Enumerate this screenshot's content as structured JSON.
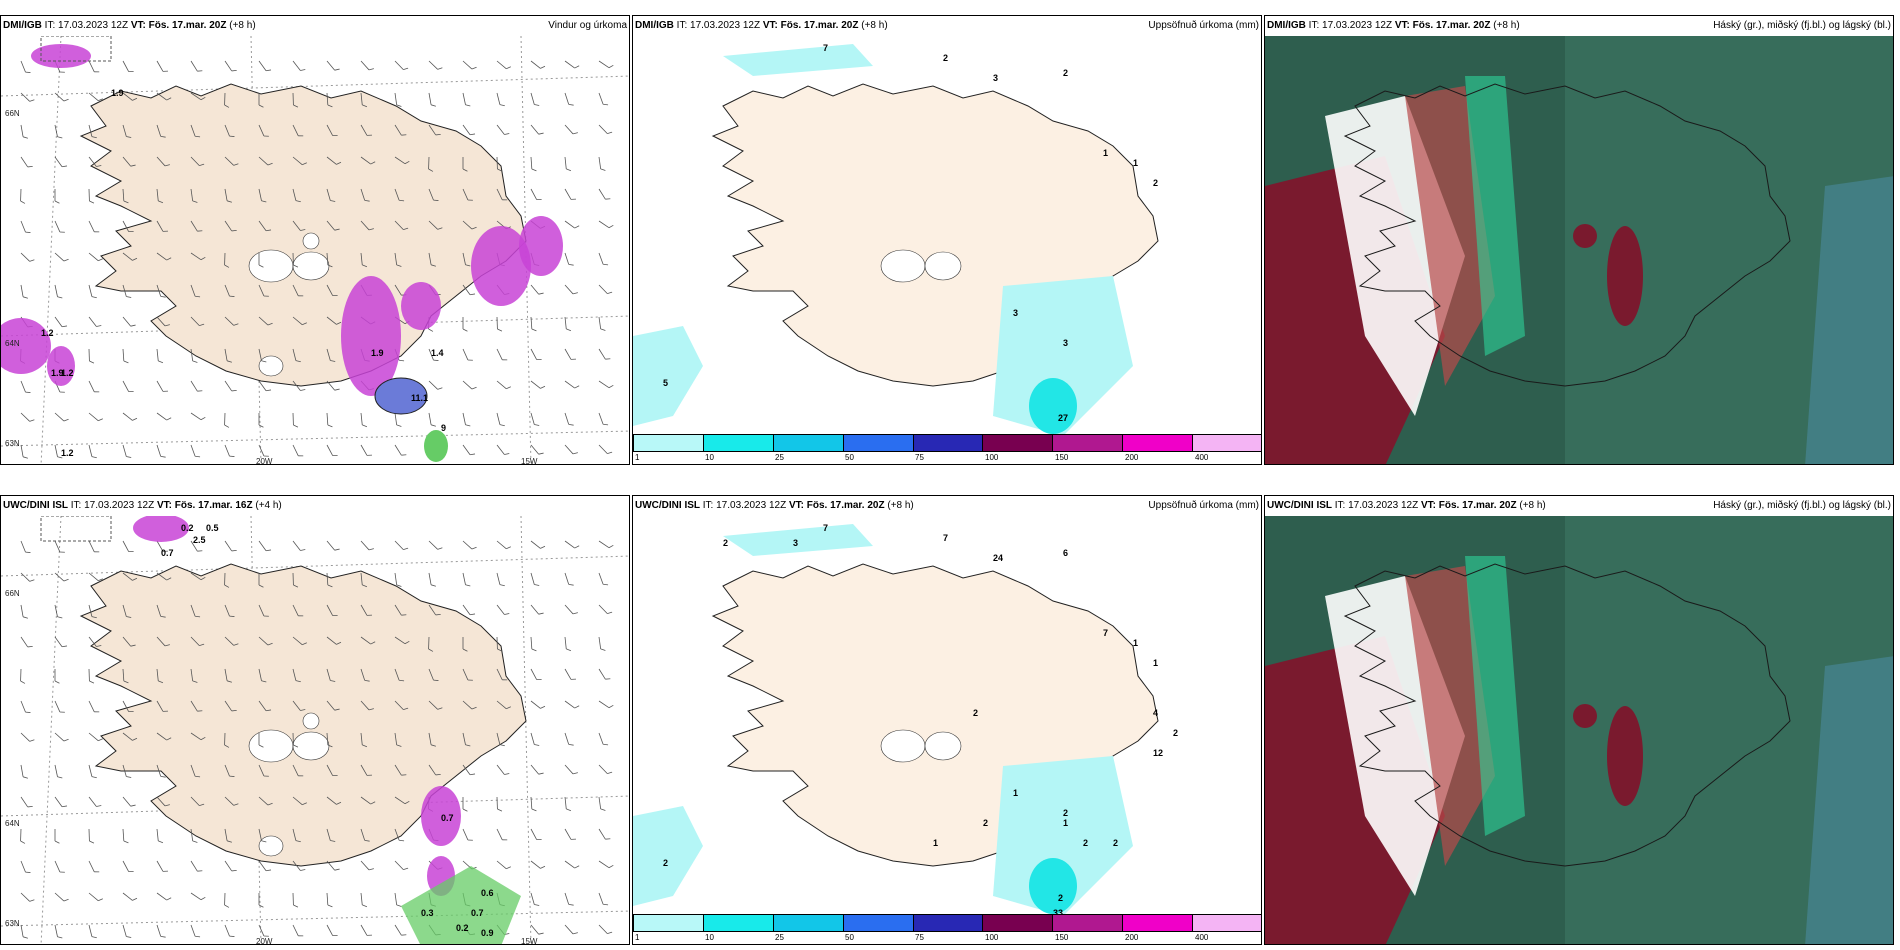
{
  "colors": {
    "land": "#f5e6d6",
    "land_light": "#fcf0e3",
    "precip_cyan": "#b4f6f6",
    "precip_cyan2": "#22e6e6",
    "magenta": "#c843d6",
    "green": "#66cc66",
    "cloud_dark": "#2e5e4e",
    "cloud_mid": "#3f7a66",
    "cloud_red": "#b84a4a",
    "cloud_maroon": "#7a1a2e",
    "cloud_teal": "#2dd49a"
  },
  "colorbar": {
    "colors": [
      "#b8f8f8",
      "#18eaea",
      "#12c6e8",
      "#2a6ef0",
      "#2828b4",
      "#780050",
      "#b01890",
      "#f000c8",
      "#f4b4f4"
    ],
    "ticks": [
      "1",
      "10",
      "25",
      "50",
      "75",
      "100",
      "150",
      "200",
      "400"
    ]
  },
  "panels": [
    {
      "model": "DMI/IGB",
      "it": "IT: 17.03.2023 12Z",
      "vt": "VT: Fös. 17.mar. 20Z",
      "offset": "(+8 h)",
      "title": "Vindur og úrkoma",
      "type": "wind",
      "lat_labels": [
        "66N",
        "64N",
        "63N"
      ],
      "lon_labels": [
        "20W",
        "15W"
      ],
      "values": [
        "1.9",
        "1.2",
        "1.9",
        "1.9",
        "1.4",
        "11.1",
        "9",
        "1.2",
        "1.2"
      ]
    },
    {
      "model": "DMI/IGB",
      "it": "IT: 17.03.2023 12Z",
      "vt": "VT: Fös. 17.mar. 20Z",
      "offset": "(+8 h)",
      "title": "Uppsöfnuð úrkoma (mm)",
      "type": "accum",
      "values": [
        "7",
        "2",
        "3",
        "2",
        "1",
        "1",
        "2",
        "3",
        "3",
        "5",
        "27"
      ]
    },
    {
      "model": "DMI/IGB",
      "it": "IT: 17.03.2023 12Z",
      "vt": "VT: Fös. 17.mar. 20Z",
      "offset": "(+8 h)",
      "title": "Háský (gr.), miðský (fj.bl.) og lágský (bl.)",
      "type": "cloud"
    },
    {
      "model": "UWC/DINI ISL",
      "it": "IT: 17.03.2023 12Z",
      "vt": "VT: Fös. 17.mar. 16Z",
      "offset": "(+4 h)",
      "title": "",
      "type": "wind",
      "lat_labels": [
        "66N",
        "64N",
        "63N"
      ],
      "lon_labels": [
        "20W",
        "15W"
      ],
      "values": [
        "0.2",
        "0.5",
        "0.7",
        "0.7",
        "0.3",
        "0.7",
        "0.2",
        "0.6",
        "0.9",
        "2.5"
      ]
    },
    {
      "model": "UWC/DINI ISL",
      "it": "IT: 17.03.2023 12Z",
      "vt": "VT: Fös. 17.mar. 20Z",
      "offset": "(+8 h)",
      "title": "Uppsöfnuð úrkoma (mm)",
      "type": "accum",
      "values": [
        "7",
        "7",
        "24",
        "6",
        "7",
        "1",
        "1",
        "1",
        "1",
        "2",
        "2",
        "2",
        "3",
        "2",
        "4",
        "2",
        "12",
        "2",
        "2",
        "2",
        "1",
        "2",
        "33"
      ]
    },
    {
      "model": "UWC/DINI ISL",
      "it": "IT: 17.03.2023 12Z",
      "vt": "VT: Fös. 17.mar. 20Z",
      "offset": "(+8 h)",
      "title": "Háský (gr.), miðský (fj.bl.) og lágský (bl.)",
      "type": "cloud"
    }
  ]
}
